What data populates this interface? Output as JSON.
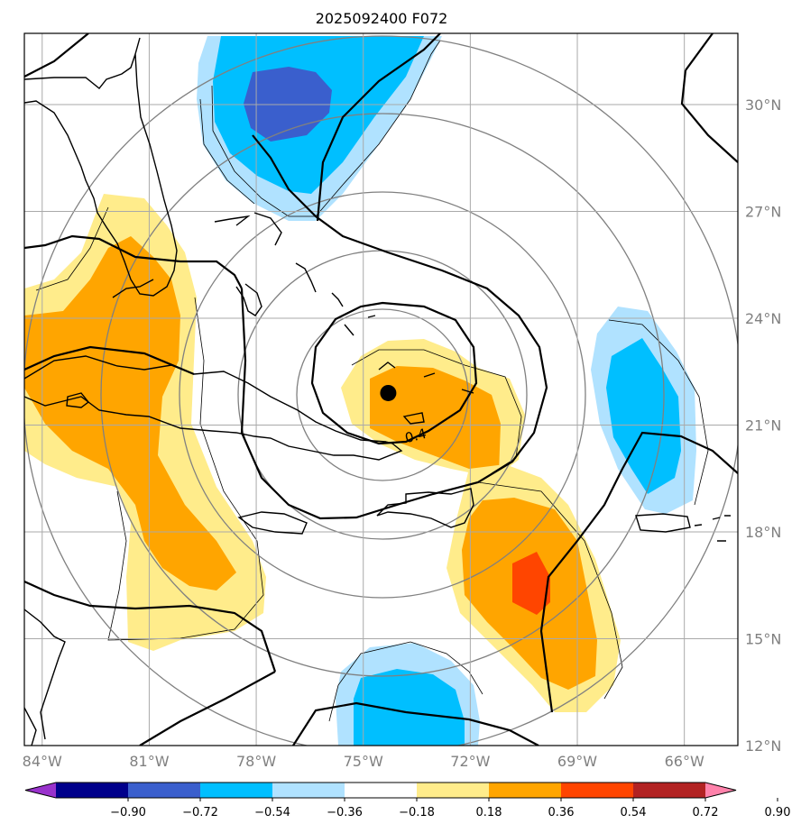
{
  "chart_data": {
    "type": "heatmap",
    "title": "2025092400 F072",
    "projection": "map",
    "extent": {
      "lon": [
        -84.5,
        -64.5
      ],
      "lat": [
        12,
        32
      ]
    },
    "lon_ticks": [
      {
        "value": -84,
        "label": "84°W"
      },
      {
        "value": -81,
        "label": "81°W"
      },
      {
        "value": -78,
        "label": "78°W"
      },
      {
        "value": -75,
        "label": "75°W"
      },
      {
        "value": -72,
        "label": "72°W"
      },
      {
        "value": -69,
        "label": "69°W"
      },
      {
        "value": -66,
        "label": "66°W"
      }
    ],
    "lat_ticks": [
      {
        "value": 30,
        "label": "30°N"
      },
      {
        "value": 27,
        "label": "27°N"
      },
      {
        "value": 24,
        "label": "24°N"
      },
      {
        "value": 21,
        "label": "21°N"
      },
      {
        "value": 18,
        "label": "18°N"
      },
      {
        "value": 15,
        "label": "15°N"
      },
      {
        "value": 12,
        "label": "12°N"
      }
    ],
    "grid": true,
    "colorbar": {
      "orientation": "horizontal",
      "extend": "both",
      "levels": [
        -0.9,
        -0.72,
        -0.54,
        -0.36,
        -0.18,
        0.18,
        0.36,
        0.54,
        0.72,
        0.9
      ],
      "tick_labels": [
        "−0.90",
        "−0.72",
        "−0.54",
        "−0.36",
        "−0.18",
        "0.18",
        "0.36",
        "0.54",
        "0.72",
        "0.90"
      ],
      "colors": [
        "#9932cc",
        "#00008b",
        "#3a5fcd",
        "#00bfff",
        "#b0e2ff",
        "#ffffff",
        "#ffec8b",
        "#ffa500",
        "#ff4500",
        "#b22222",
        "#ff82ab"
      ]
    },
    "center_marker": {
      "lon": -74.3,
      "lat": 21.9
    },
    "contour_label": {
      "text": "0.4",
      "lon": -73.5,
      "lat": 20.7
    },
    "range_rings_deg": [
      2,
      4,
      6,
      8,
      10
    ],
    "shaded_regions": [
      {
        "name": "northern negative",
        "level_range": [
          -0.72,
          -0.18
        ],
        "center": {
          "lon": -77,
          "lat": 30
        }
      },
      {
        "name": "western positive",
        "level_range": [
          0.18,
          0.54
        ],
        "center": {
          "lon": -81.5,
          "lat": 21
        }
      },
      {
        "name": "central positive",
        "level_range": [
          0.18,
          0.54
        ],
        "center": {
          "lon": -73.5,
          "lat": 21.5
        }
      },
      {
        "name": "southeastern positive",
        "level_range": [
          0.18,
          0.72
        ],
        "center": {
          "lon": -70,
          "lat": 16.5
        }
      },
      {
        "name": "eastern negative",
        "level_range": [
          -0.54,
          -0.18
        ],
        "center": {
          "lon": -67,
          "lat": 21.5
        }
      },
      {
        "name": "southern negative",
        "level_range": [
          -0.54,
          -0.18
        ],
        "center": {
          "lon": -73.5,
          "lat": 13
        }
      }
    ]
  }
}
